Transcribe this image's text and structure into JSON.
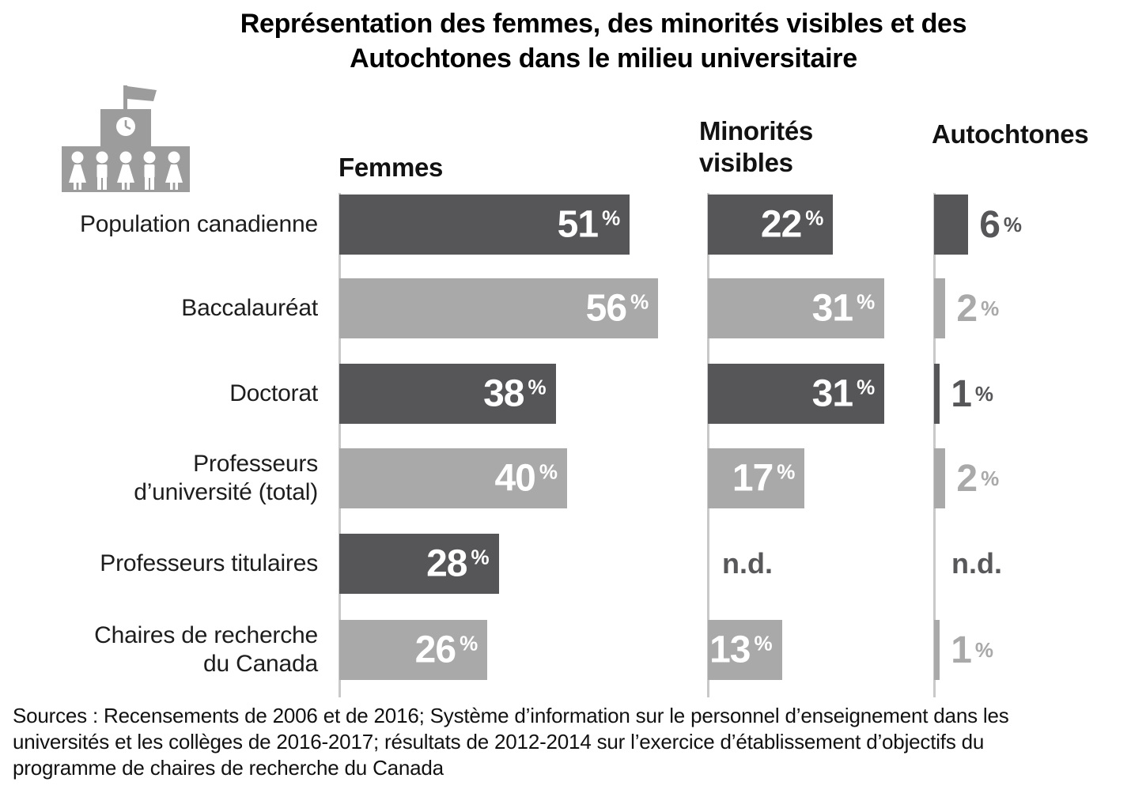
{
  "title": {
    "line1": "Représentation des femmes, des minorités visibles et des",
    "line2": "Autochtones dans le milieu universitaire"
  },
  "icons": {
    "header_icon": "university-building-icon"
  },
  "columns": [
    {
      "label": "Femmes"
    },
    {
      "label": "Minorités\nvisibles"
    },
    {
      "label": "Autochtones"
    }
  ],
  "chart_data": {
    "type": "bar",
    "orientation": "horizontal",
    "unit": "%",
    "nd_label": "n.d.",
    "categories": [
      "Population canadienne",
      "Baccalauréat",
      "Doctorat",
      "Professeurs\nd’université (total)",
      "Professeurs titulaires",
      "Chaires de recherche\ndu Canada"
    ],
    "series": [
      {
        "name": "Femmes",
        "values": [
          51,
          56,
          38,
          40,
          28,
          26
        ]
      },
      {
        "name": "Minorités visibles",
        "values": [
          22,
          31,
          31,
          17,
          null,
          13
        ]
      },
      {
        "name": "Autochtones",
        "values": [
          6,
          2,
          1,
          2,
          null,
          1
        ]
      }
    ],
    "xlim": [
      0,
      60
    ],
    "value_label_position": [
      "inside",
      "inside",
      "outside"
    ],
    "row_shading": [
      "dark",
      "light",
      "dark",
      "light",
      "dark",
      "light"
    ],
    "grid": false,
    "legend": "none"
  },
  "colors": {
    "bar_dark": "#565659",
    "bar_light": "#a9a9a9",
    "axis_line": "#c9c9c9",
    "nd_text": "#58585a",
    "icon_gray": "#9c9c9c",
    "title_text": "#000000",
    "label_text": "#1d1d1d"
  },
  "source": {
    "lines": [
      "Sources : Recensements de 2006 et de 2016; Système d’information sur le personnel d’enseignement dans les",
      "universités et les collèges de 2016-2017; résultats de 2012-2014 sur l’exercice d’établissement d’objectifs du",
      "programme de chaires de recherche du Canada"
    ]
  }
}
